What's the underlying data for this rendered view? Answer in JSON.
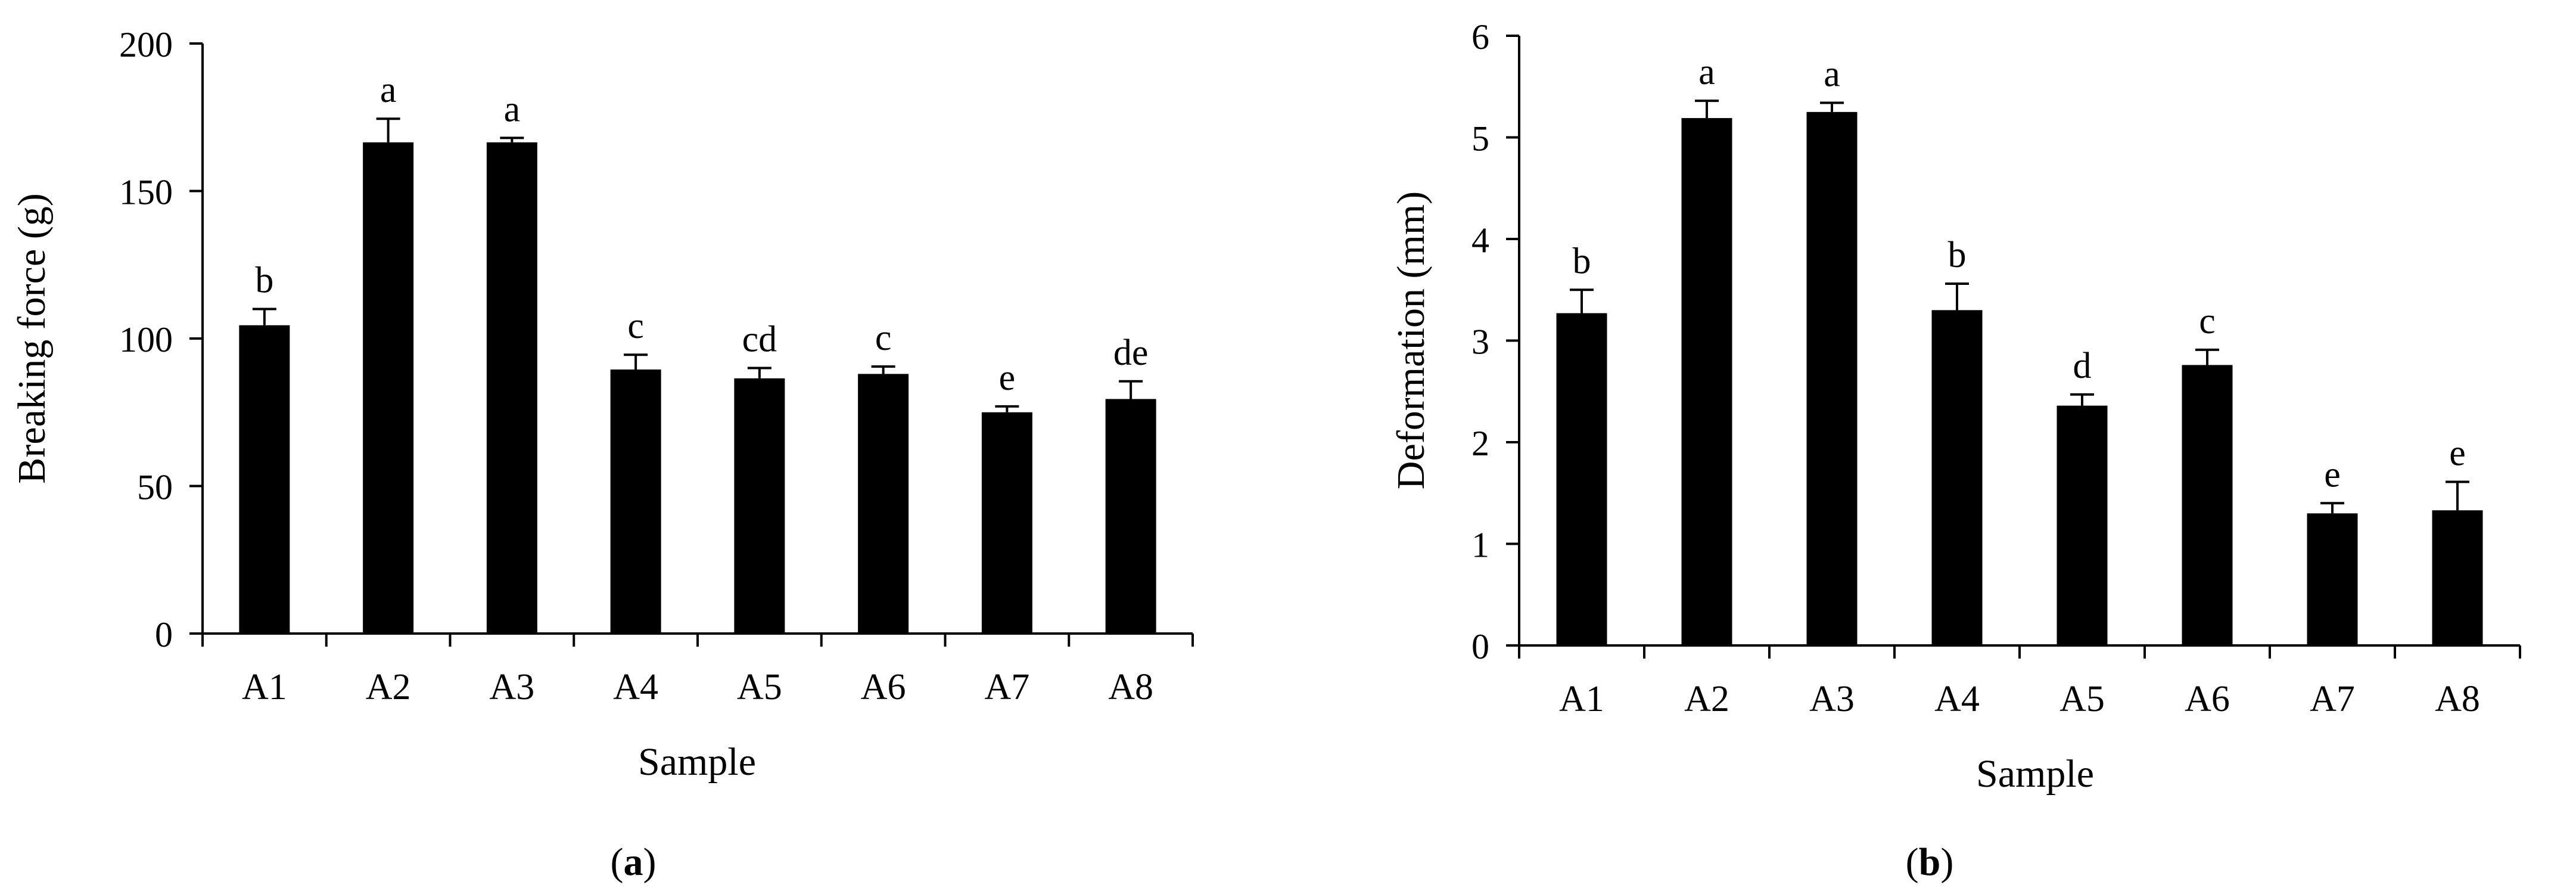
{
  "chart_data": [
    {
      "panel_label": "(a)",
      "type": "bar",
      "title": "",
      "xlabel": "Sample",
      "ylabel": "Breaking force (g)",
      "ylim": [
        0,
        200
      ],
      "yticks": [
        0,
        50,
        100,
        150,
        200
      ],
      "ytick_labels": [
        "0",
        "50",
        "100",
        "150",
        "200"
      ],
      "categories": [
        "A1",
        "A2",
        "A3",
        "A4",
        "A5",
        "A6",
        "A7",
        "A8"
      ],
      "values": [
        104.5,
        166.5,
        166.5,
        89.5,
        86.5,
        88,
        75,
        79.5
      ],
      "errors": [
        5.5,
        8,
        1.5,
        5,
        3.5,
        2.5,
        2,
        6
      ],
      "letters": [
        "b",
        "a",
        "a",
        "c",
        "cd",
        "c",
        "e",
        "de"
      ],
      "bar_color": "#000000",
      "grid": false
    },
    {
      "panel_label": "(b)",
      "type": "bar",
      "title": "",
      "xlabel": "Sample",
      "ylabel": "Deformation (mm)",
      "ylim": [
        0,
        6
      ],
      "yticks": [
        0,
        1,
        2,
        3,
        4,
        5,
        6
      ],
      "ytick_labels": [
        "0",
        "1",
        "2",
        "3",
        "4",
        "5",
        "6"
      ],
      "categories": [
        "A1",
        "A2",
        "A3",
        "A4",
        "A5",
        "A6",
        "A7",
        "A8"
      ],
      "values": [
        3.27,
        5.19,
        5.25,
        3.3,
        2.36,
        2.76,
        1.3,
        1.33
      ],
      "errors": [
        0.23,
        0.17,
        0.09,
        0.26,
        0.11,
        0.15,
        0.1,
        0.28
      ],
      "letters": [
        "b",
        "a",
        "a",
        "b",
        "d",
        "c",
        "e",
        "e"
      ],
      "bar_color": "#000000",
      "grid": false
    }
  ]
}
